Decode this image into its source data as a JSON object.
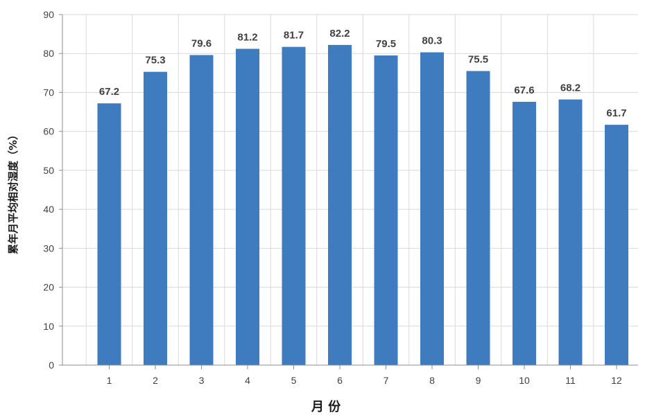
{
  "chart_data": {
    "type": "bar",
    "title": "",
    "xlabel": "月 份",
    "ylabel": "累年月平均相对湿度（%）",
    "categories": [
      "1",
      "2",
      "3",
      "4",
      "5",
      "6",
      "7",
      "8",
      "9",
      "10",
      "11",
      "12"
    ],
    "values": [
      67.2,
      75.3,
      79.6,
      81.2,
      81.7,
      82.2,
      79.5,
      80.3,
      75.5,
      67.6,
      68.2,
      61.7
    ],
    "ylim": [
      0,
      90
    ],
    "yticks": [
      0,
      10,
      20,
      30,
      40,
      50,
      60,
      70,
      80,
      90
    ],
    "grid": true,
    "bar_color": "#3f7bbf",
    "grid_color": "#d9d9d9"
  }
}
